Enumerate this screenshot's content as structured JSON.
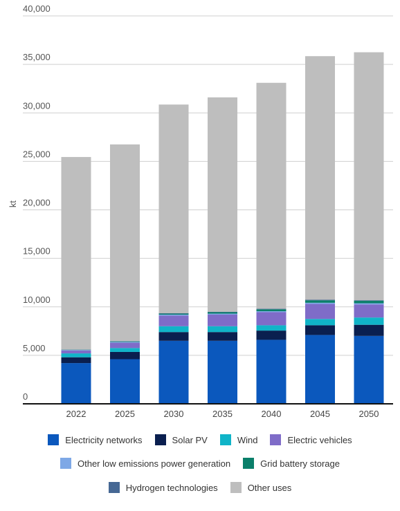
{
  "chart_data": {
    "type": "bar",
    "stacked": true,
    "ylabel": "kt",
    "ylim": [
      0,
      40000
    ],
    "yticks": [
      "0",
      "5,000",
      "10,000",
      "15,000",
      "20,000",
      "25,000",
      "30,000",
      "35,000",
      "40,000"
    ],
    "ytick_values": [
      0,
      5000,
      10000,
      15000,
      20000,
      25000,
      30000,
      35000,
      40000
    ],
    "grid": true,
    "legend_position": "bottom",
    "categories": [
      "2022",
      "2025",
      "2030",
      "2035",
      "2040",
      "2045",
      "2050"
    ],
    "series": [
      {
        "name": "Electricity networks",
        "color": "#0b58bd",
        "values": [
          4200,
          4600,
          6500,
          6500,
          6600,
          7100,
          7000
        ]
      },
      {
        "name": "Solar PV",
        "color": "#0a1f4f",
        "values": [
          600,
          750,
          900,
          900,
          950,
          1000,
          1150
        ]
      },
      {
        "name": "Wind",
        "color": "#10b4c8",
        "values": [
          400,
          400,
          600,
          600,
          550,
          650,
          750
        ]
      },
      {
        "name": "Electric vehicles",
        "color": "#7f6cc8",
        "values": [
          300,
          550,
          1100,
          1200,
          1350,
          1550,
          1350
        ]
      },
      {
        "name": "Other low emissions power generation",
        "color": "#7ea8e6",
        "values": [
          50,
          80,
          100,
          100,
          100,
          120,
          120
        ]
      },
      {
        "name": "Grid battery storage",
        "color": "#0a7f6a",
        "values": [
          30,
          60,
          100,
          150,
          200,
          250,
          250
        ]
      },
      {
        "name": "Hydrogen technologies",
        "color": "#466894",
        "values": [
          20,
          30,
          40,
          40,
          50,
          60,
          60
        ]
      },
      {
        "name": "Other uses",
        "color": "#bebebe",
        "values": [
          19850,
          20280,
          21520,
          22110,
          23300,
          25120,
          25570
        ]
      }
    ]
  },
  "legend_rows": [
    [
      0,
      1,
      2,
      3
    ],
    [
      4,
      5
    ],
    [
      6,
      7
    ]
  ]
}
